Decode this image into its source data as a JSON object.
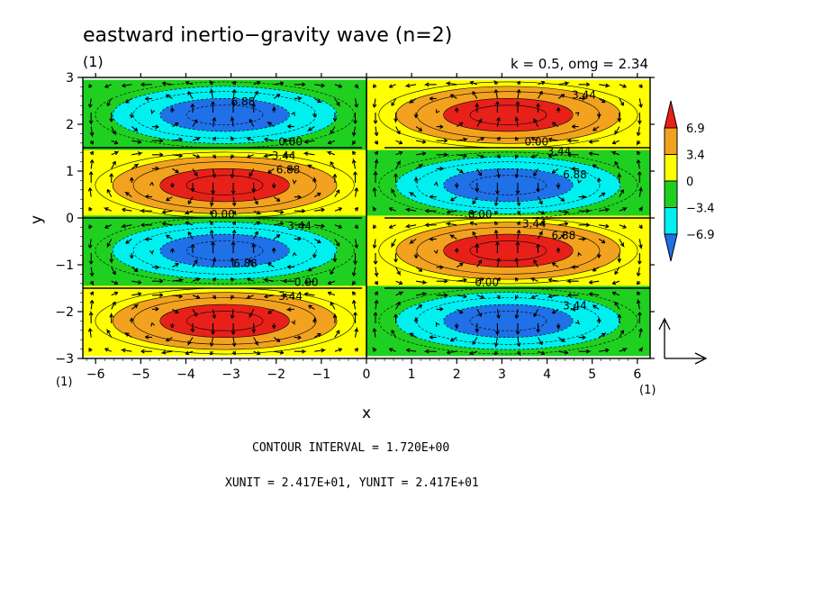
{
  "chart_data": {
    "type": "heatmap",
    "title": "eastward inertio−gravity wave (n=2)",
    "subtitle_left": "(1)",
    "subtitle_right": "k = 0.5, omg = 2.34",
    "xlabel": "x",
    "ylabel": "y",
    "xlim": [
      -6.283,
      6.283
    ],
    "ylim": [
      -3,
      3
    ],
    "x_ticks": [
      -6,
      -5,
      -4,
      -3,
      -2,
      -1,
      0,
      1,
      2,
      3,
      4,
      5,
      6
    ],
    "y_ticks": [
      -3,
      -2,
      -1,
      0,
      1,
      2,
      3
    ],
    "x_tick_labels": [
      "−6",
      "−5",
      "−4",
      "−3",
      "−2",
      "−1",
      "0",
      "1",
      "2",
      "3",
      "4",
      "5",
      "6"
    ],
    "y_tick_labels": [
      "−3",
      "−2",
      "−1",
      "0",
      "1",
      "2",
      "3"
    ],
    "x_unit_label_left": "(1)",
    "x_unit_label_right": "(1)",
    "contour_interval_text": "CONTOUR INTERVAL = 1.720E+00",
    "vector_unit_text": "XUNIT = 2.417E+01, YUNIT = 2.417E+01",
    "colorbar": {
      "levels": [
        -6.9,
        -3.4,
        0,
        3.4,
        6.9
      ],
      "labels": [
        "6.9",
        "3.4",
        "0",
        "−3.4",
        "−6.9"
      ],
      "colors": [
        "#e8201a",
        "#f2a21f",
        "#ffff00",
        "#20d020",
        "#00f0f0",
        "#2070e8"
      ]
    },
    "contour_labels": [
      "0.00",
      "3.44",
      "6.88",
      "6.88",
      "0.00",
      "3.44",
      "3.44",
      "6.88",
      "0.00",
      "6.88",
      "3.44",
      "0.00",
      "0.00",
      "3.44",
      "6.88",
      "3.44",
      "0.00",
      "3.44"
    ],
    "field": {
      "amplitude": 8.6,
      "cells": [
        {
          "x_center": -3.14,
          "y_center": 2.2,
          "sign": -1
        },
        {
          "x_center": -3.14,
          "y_center": 0.7,
          "sign": 1
        },
        {
          "x_center": -3.14,
          "y_center": -0.7,
          "sign": -1
        },
        {
          "x_center": -3.14,
          "y_center": -2.2,
          "sign": 1
        },
        {
          "x_center": 3.14,
          "y_center": 2.2,
          "sign": 1
        },
        {
          "x_center": 3.14,
          "y_center": 0.7,
          "sign": -1
        },
        {
          "x_center": 3.14,
          "y_center": -0.7,
          "sign": 1
        },
        {
          "x_center": 3.14,
          "y_center": -2.2,
          "sign": -1
        }
      ],
      "zero_lines_y": [
        1.5,
        0,
        -1.5
      ]
    }
  }
}
